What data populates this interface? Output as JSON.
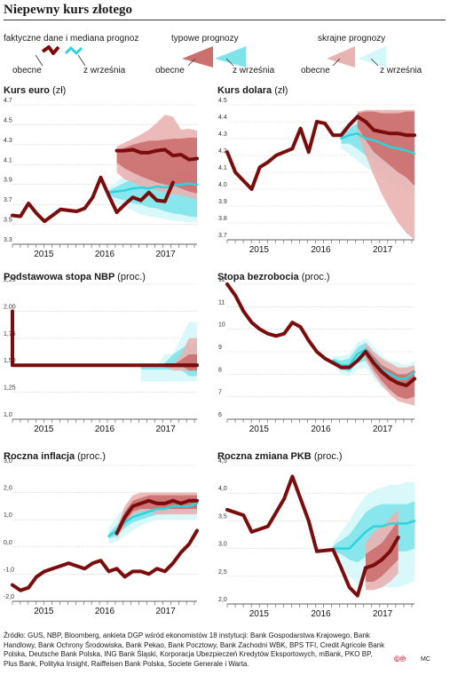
{
  "title": "Niepewny kurs złotego",
  "legend": {
    "actual_label": "faktyczne dane i mediana prognoz",
    "typical_label": "typowe prognozy",
    "extreme_label": "skrajne prognozy",
    "current_label": "obecne",
    "september_label": "z września"
  },
  "colors": {
    "actual": "#7a0c0c",
    "typical_current": "#cc6f6f",
    "extreme_current": "#e9b3b1",
    "typical_september": "#7fe3ea",
    "extreme_september": "#d4f7fa",
    "median_september": "#2ed3dd"
  },
  "source": "Źródło: GUS, NBP, Bloomberg, ankieta DGP wśród ekonomistów 18 instytucji: Bank Gospodarstwa Krajowego, Bank Handlowy, Bank Ochrony Środowiska, Bank Pekao, Bank Pocztowy, Bank Zachodni WBK, BPS TFI, Credit Agricole Bank Polska, Deutsche Bank Polska, ING Bank Śląski, Korporacja Ubezpieczeń Kredytów Eksportowych, mBank, PKO BP, Plus Bank, Polityka Insight, Raiffeisen Bank Polska, Societe Generale i Warta.",
  "footer": {
    "logo": "©℗",
    "author": "MC"
  },
  "chart_data": [
    {
      "type": "line",
      "title": "Kurs euro",
      "unit": "(zł)",
      "x_ticks": [
        "2015",
        "2016",
        "2017"
      ],
      "y_ticks": [
        "4.7",
        "4.5",
        "4.3",
        "4.1",
        "3.9",
        "3.7",
        "3.5",
        "3.3"
      ],
      "ylim": [
        3.3,
        4.7
      ],
      "xlim": [
        0,
        23
      ],
      "actual": [
        3.59,
        3.58,
        3.71,
        3.61,
        3.53,
        3.59,
        3.65,
        3.64,
        3.63,
        3.66,
        3.77,
        3.97,
        3.79,
        3.62,
        3.7,
        3.77,
        3.74,
        3.82,
        3.74,
        3.73,
        3.92
      ],
      "forecast_current": {
        "x": [
          13,
          14,
          15,
          16,
          17,
          18,
          19,
          20,
          21,
          22,
          23
        ],
        "median": [
          4.24,
          4.24,
          4.25,
          4.22,
          4.22,
          4.24,
          4.25,
          4.19,
          4.2,
          4.15,
          4.16
        ],
        "typical_low": [
          4.12,
          4.06,
          4.02,
          3.98,
          3.95,
          3.92,
          3.9,
          3.89,
          3.86,
          3.83,
          3.81
        ],
        "typical_high": [
          4.24,
          4.27,
          4.3,
          4.32,
          4.34,
          4.34,
          4.35,
          4.36,
          4.36,
          4.37,
          4.37
        ],
        "extreme_low": [
          4.02,
          3.95,
          3.92,
          3.88,
          3.86,
          3.84,
          3.82,
          3.8,
          3.79,
          3.77,
          3.75
        ],
        "extreme_high": [
          4.28,
          4.32,
          4.36,
          4.4,
          4.45,
          4.52,
          4.6,
          4.58,
          4.45,
          4.46,
          4.44
        ]
      },
      "forecast_september": {
        "x": [
          12,
          13,
          14,
          15,
          16,
          17,
          18,
          19,
          20,
          21,
          22,
          23
        ],
        "median": [
          3.82,
          3.83,
          3.84,
          3.86,
          3.87,
          3.86,
          3.88,
          3.87,
          3.89,
          3.9,
          3.91,
          3.9
        ],
        "typical_low": [
          3.79,
          3.76,
          3.74,
          3.71,
          3.7,
          3.67,
          3.66,
          3.63,
          3.61,
          3.6,
          3.58,
          3.57
        ],
        "typical_high": [
          3.84,
          3.88,
          3.92,
          3.95,
          3.97,
          3.99,
          4.0,
          4.01,
          4.02,
          4.03,
          4.04,
          4.04
        ],
        "extreme_low": [
          3.76,
          3.71,
          3.67,
          3.64,
          3.6,
          3.58,
          3.57,
          3.55,
          3.54,
          3.53,
          3.52,
          3.52
        ],
        "extreme_high": [
          3.86,
          3.93,
          3.99,
          4.04,
          4.07,
          4.1,
          4.13,
          4.16,
          4.19,
          4.23,
          4.27,
          4.3
        ]
      }
    },
    {
      "type": "line",
      "title": "Kurs dolara",
      "unit": "(zł)",
      "x_ticks": [
        "2015",
        "2016",
        "2017"
      ],
      "y_ticks": [
        "4.5",
        "4.4",
        "4.3",
        "4.2",
        "4.1",
        "4.0",
        "3.9",
        "3.8",
        "3.7"
      ],
      "ylim": [
        3.7,
        4.5
      ],
      "xlim": [
        0,
        23
      ],
      "actual": [
        4.22,
        4.1,
        4.05,
        4.0,
        4.13,
        4.16,
        4.2,
        4.22,
        4.24,
        4.36,
        4.22,
        4.4,
        4.39,
        4.32,
        4.32,
        4.38,
        4.43
      ],
      "forecast_current": {
        "x": [
          16,
          17,
          18,
          19,
          20,
          21,
          22,
          23
        ],
        "median": [
          4.43,
          4.4,
          4.35,
          4.34,
          4.33,
          4.33,
          4.32,
          4.32
        ],
        "typical_low": [
          4.37,
          4.29,
          4.22,
          4.18,
          4.14,
          4.1,
          4.07,
          4.02
        ],
        "typical_high": [
          4.45,
          4.46,
          4.46,
          4.45,
          4.45,
          4.45,
          4.46,
          4.46
        ],
        "extreme_low": [
          4.33,
          4.2,
          4.08,
          3.97,
          3.88,
          3.8,
          3.74,
          3.7
        ],
        "extreme_high": [
          4.46,
          4.47,
          4.47,
          4.47,
          4.47,
          4.47,
          4.47,
          4.47
        ]
      },
      "forecast_september": {
        "x": [
          14,
          15,
          16,
          17,
          18,
          19,
          20,
          21,
          22,
          23
        ],
        "median": [
          4.3,
          4.32,
          4.33,
          4.3,
          4.29,
          4.27,
          4.25,
          4.24,
          4.23,
          4.21
        ],
        "typical_low": [
          4.27,
          4.27,
          4.24,
          4.2,
          4.18,
          4.16,
          4.13,
          4.11,
          4.09,
          4.07
        ],
        "typical_high": [
          4.34,
          4.36,
          4.39,
          4.4,
          4.4,
          4.4,
          4.4,
          4.4,
          4.4,
          4.4
        ],
        "extreme_low": [
          4.24,
          4.21,
          4.17,
          4.13,
          4.1,
          4.07,
          4.04,
          4.01,
          3.99,
          3.96
        ],
        "extreme_high": [
          4.36,
          4.4,
          4.43,
          4.44,
          4.44,
          4.45,
          4.45,
          4.45,
          4.45,
          4.45
        ]
      }
    },
    {
      "type": "line",
      "title": "Podstawowa stopa NBP",
      "unit": "(proc.)",
      "x_ticks": [
        "2015",
        "2016",
        "2017"
      ],
      "y_ticks": [
        "2,25",
        "2,00",
        "1,75",
        "1,50",
        "1,25",
        "1,0"
      ],
      "ylim": [
        1.0,
        2.25
      ],
      "xlim": [
        0,
        23
      ],
      "actual_x": [
        0,
        0,
        23
      ],
      "actual": [
        2.0,
        1.5,
        1.5
      ],
      "forecast_current": {
        "x": [
          19,
          20,
          21,
          22,
          23
        ],
        "median": [
          1.5,
          1.5,
          1.5,
          1.5,
          1.5
        ],
        "typical_low": [
          1.5,
          1.5,
          1.5,
          1.45,
          1.45
        ],
        "typical_high": [
          1.5,
          1.5,
          1.55,
          1.6,
          1.6
        ],
        "extreme_low": [
          1.5,
          1.45,
          1.45,
          1.45,
          1.45
        ],
        "extreme_high": [
          1.5,
          1.5,
          1.6,
          1.75,
          1.75
        ]
      },
      "forecast_september": {
        "x": [
          16,
          17,
          18,
          19,
          20,
          21,
          22,
          23
        ],
        "median": [
          1.5,
          1.5,
          1.5,
          1.5,
          1.5,
          1.5,
          1.5,
          1.5
        ],
        "typical_low": [
          1.46,
          1.46,
          1.46,
          1.46,
          1.46,
          1.46,
          1.4,
          1.4
        ],
        "typical_high": [
          1.5,
          1.5,
          1.5,
          1.52,
          1.6,
          1.65,
          1.7,
          1.7
        ],
        "extreme_low": [
          1.35,
          1.35,
          1.35,
          1.35,
          1.35,
          1.35,
          1.35,
          1.35
        ],
        "extreme_high": [
          1.5,
          1.5,
          1.5,
          1.6,
          1.6,
          1.75,
          1.9,
          1.9
        ]
      }
    },
    {
      "type": "line",
      "title": "Stopa bezrobocia",
      "unit": "(proc.)",
      "x_ticks": [
        "2015",
        "2016",
        "2017"
      ],
      "y_ticks": [
        "12",
        "11",
        "10",
        "9",
        "8",
        "7",
        "6"
      ],
      "ylim": [
        6,
        12
      ],
      "xlim": [
        0,
        23
      ],
      "actual": [
        12.0,
        11.5,
        10.8,
        10.3,
        10.0,
        9.8,
        9.7,
        9.8,
        10.3,
        10.1,
        9.5,
        9.0,
        8.7,
        8.5,
        8.3,
        8.3,
        8.6,
        9.0
      ],
      "forecast_current": {
        "x": [
          17,
          18,
          19,
          20,
          21,
          22,
          23
        ],
        "median": [
          9.0,
          8.5,
          8.1,
          7.8,
          7.6,
          7.5,
          7.8
        ],
        "typical_low": [
          8.8,
          8.2,
          7.7,
          7.3,
          7.0,
          6.9,
          7.0
        ],
        "typical_high": [
          9.2,
          8.8,
          8.4,
          8.2,
          8.0,
          8.0,
          8.2
        ],
        "extreme_low": [
          8.6,
          8.0,
          7.5,
          7.1,
          6.8,
          6.7,
          6.6
        ],
        "extreme_high": [
          9.4,
          9.0,
          8.7,
          8.5,
          8.3,
          8.3,
          8.4
        ]
      },
      "forecast_september": {
        "x": [
          13,
          14,
          15,
          16,
          17,
          18,
          19,
          20,
          21,
          22,
          23
        ],
        "median": [
          8.6,
          8.4,
          8.4,
          8.9,
          9.1,
          8.6,
          8.2,
          8.0,
          7.8,
          7.8,
          8.1
        ],
        "typical_low": [
          8.5,
          8.2,
          8.1,
          8.5,
          8.6,
          8.1,
          7.7,
          7.5,
          7.3,
          7.2,
          7.4
        ],
        "typical_high": [
          8.7,
          8.6,
          8.7,
          9.2,
          9.4,
          9.0,
          8.6,
          8.4,
          8.2,
          8.2,
          8.4
        ],
        "extreme_low": [
          8.4,
          8.0,
          7.9,
          8.2,
          8.3,
          7.8,
          7.4,
          7.2,
          7.0,
          6.9,
          7.0
        ],
        "extreme_high": [
          8.8,
          8.8,
          8.9,
          9.4,
          9.6,
          9.2,
          8.8,
          8.6,
          8.5,
          8.4,
          8.6
        ]
      }
    },
    {
      "type": "line",
      "title": "Roczna inflacja",
      "unit": "(proc.)",
      "x_ticks": [
        "2015",
        "2016",
        "2017"
      ],
      "y_ticks": [
        "3,0",
        "2,0",
        "1,0",
        "0,0",
        "-1,0",
        "-2,0"
      ],
      "ylim": [
        -2.0,
        3.0
      ],
      "xlim": [
        0,
        23
      ],
      "actual": [
        -1.4,
        -1.6,
        -1.5,
        -1.1,
        -0.9,
        -0.8,
        -0.7,
        -0.6,
        -0.7,
        -0.8,
        -0.6,
        -0.5,
        -0.9,
        -0.8,
        -1.1,
        -0.9,
        -0.9,
        -1.0,
        -0.8,
        -0.9,
        -0.6,
        -0.2,
        0.1,
        0.6
      ],
      "forecast_current": {
        "x": [
          13,
          14,
          15,
          16,
          17,
          18,
          19,
          20,
          21,
          22,
          23
        ],
        "median": [
          0.5,
          1.1,
          1.5,
          1.6,
          1.7,
          1.6,
          1.6,
          1.7,
          1.6,
          1.7,
          1.7
        ],
        "typical_low": [
          0.4,
          0.9,
          1.3,
          1.4,
          1.4,
          1.4,
          1.4,
          1.4,
          1.4,
          1.4,
          1.4
        ],
        "typical_high": [
          0.6,
          1.3,
          1.7,
          1.8,
          1.9,
          1.9,
          1.9,
          1.9,
          1.9,
          1.9,
          1.9
        ],
        "extreme_low": [
          0.3,
          0.8,
          1.2,
          1.3,
          1.3,
          1.2,
          1.2,
          1.2,
          1.2,
          1.2,
          1.2
        ],
        "extreme_high": [
          0.7,
          1.5,
          1.9,
          2.0,
          2.0,
          2.0,
          2.0,
          2.0,
          2.0,
          2.0,
          2.0
        ]
      },
      "forecast_september": {
        "x": [
          12,
          13,
          14,
          15,
          16,
          17,
          18,
          19,
          20,
          21,
          22,
          23
        ],
        "median": [
          0.4,
          0.6,
          0.9,
          1.1,
          1.2,
          1.3,
          1.4,
          1.4,
          1.5,
          1.5,
          1.5,
          1.6
        ],
        "typical_low": [
          0.3,
          0.4,
          0.7,
          0.9,
          1.0,
          1.1,
          1.2,
          1.2,
          1.3,
          1.3,
          1.3,
          1.3
        ],
        "typical_high": [
          0.5,
          0.8,
          1.2,
          1.4,
          1.5,
          1.6,
          1.7,
          1.7,
          1.8,
          1.8,
          1.8,
          1.8
        ],
        "extreme_low": [
          0.1,
          0.2,
          0.4,
          0.6,
          0.8,
          0.9,
          1.0,
          1.0,
          1.0,
          1.0,
          1.0,
          1.0
        ],
        "extreme_high": [
          0.7,
          1.1,
          1.5,
          1.7,
          1.8,
          1.9,
          1.9,
          1.9,
          2.0,
          2.0,
          2.0,
          2.0
        ]
      }
    },
    {
      "type": "line",
      "title": "Roczna zmiana PKB",
      "unit": "(proc.)",
      "x_ticks": [
        "2015",
        "2016",
        "2017"
      ],
      "y_ticks": [
        "4,5",
        "4,0",
        "3,5",
        "3,0",
        "2,5",
        "2,0"
      ],
      "ylim": [
        2.0,
        4.5
      ],
      "xlim": [
        0,
        23
      ],
      "actual": [
        3.7,
        3.6,
        3.3,
        3.4,
        3.9,
        4.3,
        3.5,
        2.95,
        2.98,
        2.65,
        2.3,
        2.15,
        2.65
      ],
      "actual_x": [
        0,
        2,
        3,
        5,
        7,
        8,
        10,
        11,
        13,
        14,
        15,
        16,
        17
      ],
      "forecast_current": {
        "x": [
          17,
          18,
          19,
          20,
          21
        ],
        "median": [
          2.65,
          2.7,
          2.8,
          2.95,
          3.2
        ],
        "typical_low": [
          2.4,
          2.4,
          2.5,
          2.65,
          2.8
        ],
        "typical_high": [
          2.9,
          3.0,
          3.1,
          3.3,
          3.5
        ],
        "extreme_low": [
          2.25,
          2.25,
          2.3,
          2.4,
          2.55
        ],
        "extreme_high": [
          3.1,
          3.3,
          3.4,
          3.55,
          3.7
        ]
      },
      "forecast_september": {
        "x": [
          13,
          14,
          15,
          16,
          17,
          18,
          19,
          20,
          21,
          22,
          23
        ],
        "median": [
          3.0,
          3.0,
          3.0,
          3.15,
          3.3,
          3.4,
          3.4,
          3.45,
          3.45,
          3.45,
          3.5
        ],
        "typical_low": [
          2.95,
          2.9,
          2.8,
          2.75,
          2.85,
          2.9,
          2.9,
          2.95,
          2.95,
          2.95,
          3.0
        ],
        "typical_high": [
          3.05,
          3.15,
          3.25,
          3.45,
          3.65,
          3.75,
          3.8,
          3.8,
          3.8,
          3.8,
          3.85
        ],
        "extreme_low": [
          2.9,
          2.7,
          2.5,
          2.35,
          2.3,
          2.3,
          2.3,
          2.3,
          2.3,
          2.35,
          2.4
        ],
        "extreme_high": [
          3.1,
          3.3,
          3.5,
          3.75,
          3.95,
          4.05,
          4.1,
          4.15,
          4.15,
          4.2,
          4.2
        ]
      }
    }
  ]
}
